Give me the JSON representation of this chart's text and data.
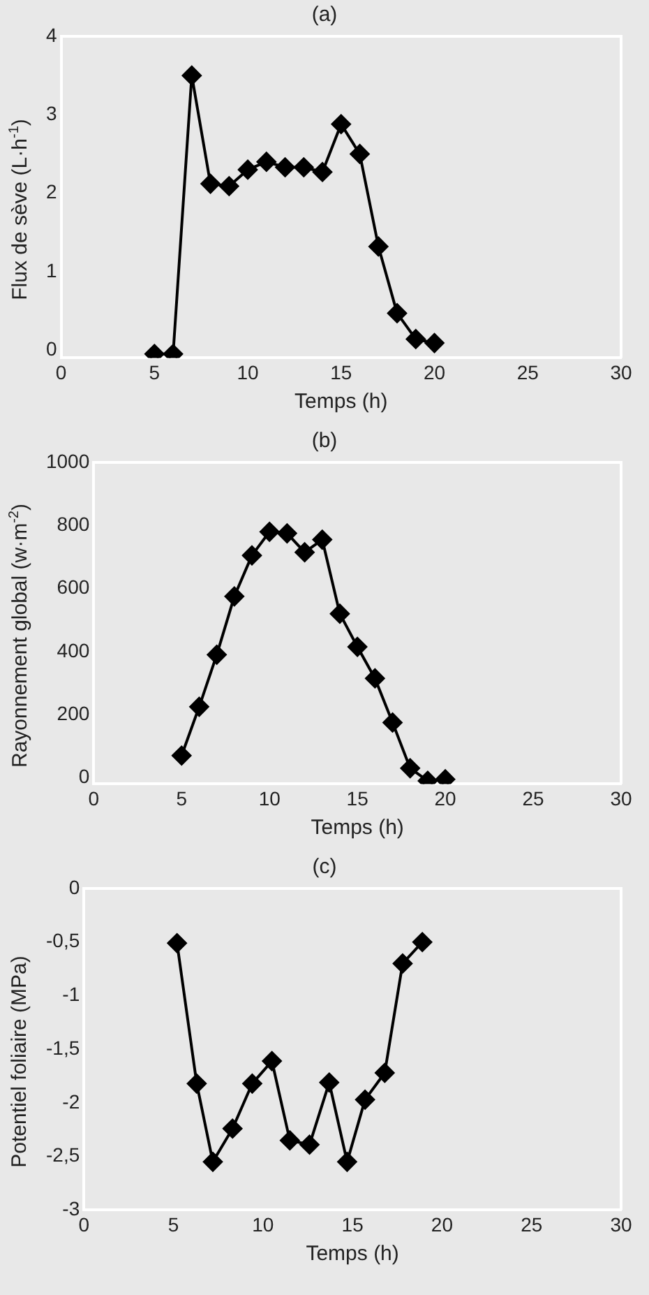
{
  "chart_data": [
    {
      "type": "line",
      "title": "(a)",
      "xlabel": "Temps (h)",
      "ylabel": "Flux de sève (L·h$^{-1}$)",
      "x": [
        5,
        6,
        7,
        8,
        9,
        10,
        11,
        12,
        13,
        14,
        15,
        16,
        17,
        18,
        19,
        20
      ],
      "series": [
        {
          "color": "#000000",
          "values": [
            -0.05,
            -0.05,
            3.5,
            2.12,
            2.09,
            2.3,
            2.4,
            2.33,
            2.33,
            2.27,
            2.88,
            2.5,
            1.32,
            0.47,
            0.14,
            0.09
          ]
        }
      ],
      "xlim": [
        0,
        30
      ],
      "xticks": [
        0,
        5,
        10,
        15,
        20,
        25,
        30
      ],
      "ylim": [
        -0.1,
        4
      ],
      "yticks": [
        0,
        1,
        2,
        3,
        4
      ],
      "marker": "diamond",
      "line_style": "solid"
    },
    {
      "type": "line",
      "title": "(b)",
      "xlabel": "Temps (h)",
      "ylabel": "Rayonnement global (w·m$^{-2}$)",
      "x": [
        5,
        6,
        7,
        8,
        9,
        10,
        11,
        12,
        13,
        14,
        15,
        16,
        17,
        18,
        19,
        20
      ],
      "series": [
        {
          "color": "#000000",
          "values": [
            70,
            225,
            390,
            575,
            705,
            780,
            775,
            715,
            755,
            520,
            415,
            315,
            175,
            30,
            -10,
            -5
          ]
        }
      ],
      "xlim": [
        0,
        30
      ],
      "xticks": [
        0,
        5,
        10,
        15,
        20,
        25,
        30
      ],
      "ylim": [
        -20,
        1000
      ],
      "yticks": [
        0,
        200,
        400,
        600,
        800,
        1000
      ],
      "marker": "diamond",
      "line_style": "solid"
    },
    {
      "type": "line",
      "title": "(c)",
      "xlabel": "Temps (h)",
      "ylabel": "Potentiel foliaire  (MPa)",
      "x": [
        5.2,
        6.3,
        7.2,
        8.3,
        9.4,
        10.5,
        11.5,
        12.6,
        13.7,
        14.7,
        15.7,
        16.8,
        17.8,
        18.9
      ],
      "series": [
        {
          "color": "#000000",
          "values": [
            -0.51,
            -1.82,
            -2.55,
            -2.24,
            -1.82,
            -1.61,
            -2.35,
            -2.39,
            -1.81,
            -2.55,
            -1.97,
            -1.72,
            -0.7,
            -0.5
          ]
        }
      ],
      "xlim": [
        0,
        30
      ],
      "xticks": [
        0,
        5,
        10,
        15,
        20,
        25,
        30
      ],
      "ylim": [
        -3,
        0
      ],
      "yticks": [
        {
          "value": -3,
          "label": "-3"
        },
        {
          "value": -2.5,
          "label": "-2,5"
        },
        {
          "value": -2,
          "label": "-2"
        },
        {
          "value": -1.5,
          "label": "-1,5"
        },
        {
          "value": -1,
          "label": "-1"
        },
        {
          "value": -0.5,
          "label": "-0,5"
        },
        {
          "value": 0,
          "label": "0"
        }
      ],
      "marker": "diamond",
      "line_style": "solid"
    }
  ]
}
